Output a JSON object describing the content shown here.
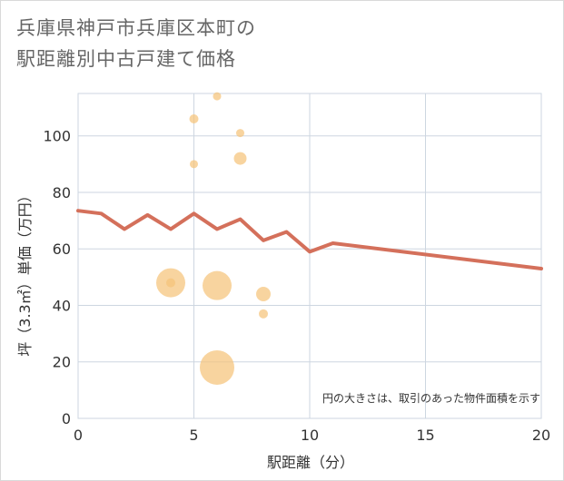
{
  "title_line1": "兵庫県神戸市兵庫区本町の",
  "title_line2": "駅距離別中古戸建て価格",
  "chart_data": {
    "type": "scatter",
    "title": "兵庫県神戸市兵庫区本町の駅距離別中古戸建て価格",
    "xlabel": "駅距離（分）",
    "ylabel": "坪（3.3㎡）単価（万円）",
    "xlim": [
      0,
      20
    ],
    "ylim": [
      0,
      115
    ],
    "xticks": [
      0,
      5,
      10,
      15,
      20
    ],
    "yticks": [
      0,
      20,
      40,
      60,
      80,
      100
    ],
    "grid": true,
    "note": "円の大きさは、取引のあった物件面積を示す",
    "colors": {
      "bubble": "#f5c37a",
      "line": "#d4705b",
      "grid": "#cdd6e0"
    },
    "scatter": [
      {
        "x": 4,
        "y": 48,
        "size": 3.2
      },
      {
        "x": 4,
        "y": 48,
        "size": 1.0
      },
      {
        "x": 5,
        "y": 106,
        "size": 1.0
      },
      {
        "x": 5,
        "y": 90,
        "size": 0.9
      },
      {
        "x": 6,
        "y": 114,
        "size": 0.9
      },
      {
        "x": 6,
        "y": 47,
        "size": 3.2
      },
      {
        "x": 6,
        "y": 18,
        "size": 3.8
      },
      {
        "x": 7,
        "y": 101,
        "size": 0.9
      },
      {
        "x": 7,
        "y": 92,
        "size": 1.4
      },
      {
        "x": 8,
        "y": 44,
        "size": 1.6
      },
      {
        "x": 8,
        "y": 37,
        "size": 1.0
      }
    ],
    "line": {
      "x": [
        0,
        1,
        2,
        3,
        4,
        5,
        6,
        7,
        8,
        9,
        10,
        11,
        20
      ],
      "y": [
        73.5,
        72.5,
        67,
        72,
        67,
        72.5,
        67,
        70.5,
        63,
        66,
        59,
        62,
        53
      ]
    }
  }
}
